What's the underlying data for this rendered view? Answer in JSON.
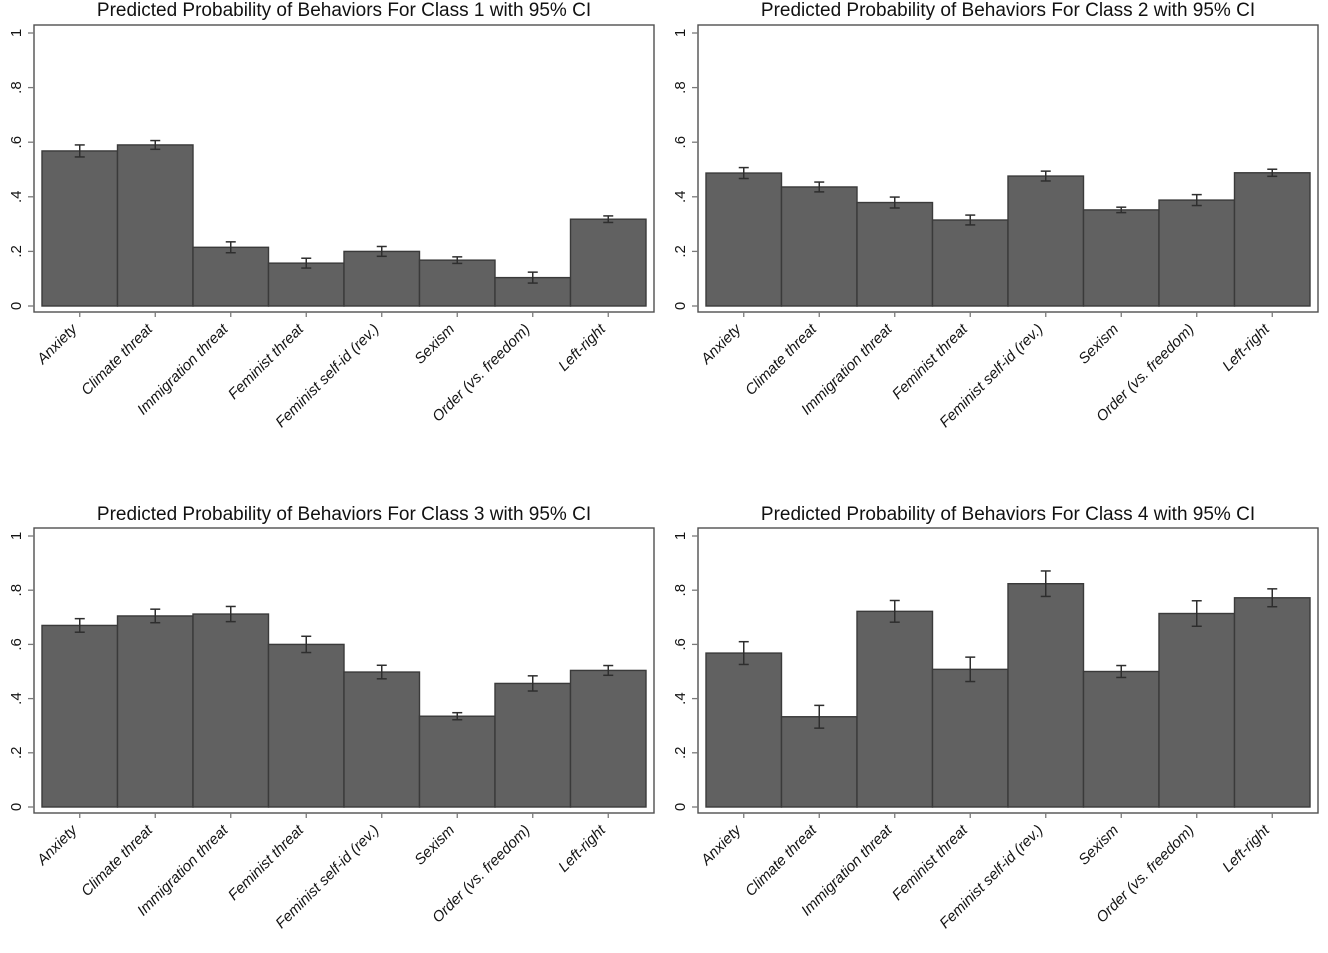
{
  "style": {
    "background": "#ffffff",
    "bar_fill": "#616161",
    "bar_border": "#3a3a3a",
    "axis_color": "#4f4f4f",
    "tick_color": "#7a7a7a",
    "error_color": "#2e2e2e",
    "text_color": "#141414"
  },
  "chart_data": [
    {
      "type": "bar",
      "title": "Predicted Probability of Behaviors For Class 1 with 95% CI",
      "categories": [
        "Anxiety",
        "Climate threat",
        "Immigration threat",
        "Feminist threat",
        "Feminist self-id (rev.)",
        "Sexism",
        "Order (vs. freedom)",
        "Left-right"
      ],
      "values": [
        0.568,
        0.59,
        0.215,
        0.157,
        0.2,
        0.168,
        0.104,
        0.318
      ],
      "ci_halfwidth": [
        0.022,
        0.016,
        0.02,
        0.018,
        0.018,
        0.012,
        0.02,
        0.012
      ],
      "xlabel": "",
      "ylabel": "",
      "ylim": [
        0,
        1
      ],
      "y_ticks": [
        "0",
        ".2",
        ".4",
        ".6",
        ".8",
        "1"
      ],
      "grid": false,
      "legend": false,
      "error_bars": "95% CI"
    },
    {
      "type": "bar",
      "title": "Predicted Probability of Behaviors For Class 2 with 95% CI",
      "categories": [
        "Anxiety",
        "Climate threat",
        "Immigration threat",
        "Feminist threat",
        "Feminist self-id (rev.)",
        "Sexism",
        "Order (vs. freedom)",
        "Left-right"
      ],
      "values": [
        0.487,
        0.436,
        0.379,
        0.315,
        0.476,
        0.352,
        0.388,
        0.488
      ],
      "ci_halfwidth": [
        0.02,
        0.018,
        0.02,
        0.018,
        0.018,
        0.01,
        0.02,
        0.013
      ],
      "xlabel": "",
      "ylabel": "",
      "ylim": [
        0,
        1
      ],
      "y_ticks": [
        "0",
        ".2",
        ".4",
        ".6",
        ".8",
        "1"
      ],
      "grid": false,
      "legend": false,
      "error_bars": "95% CI"
    },
    {
      "type": "bar",
      "title": "Predicted Probability of Behaviors For Class 3 with 95% CI",
      "categories": [
        "Anxiety",
        "Climate threat",
        "Immigration threat",
        "Feminist threat",
        "Feminist self-id (rev.)",
        "Sexism",
        "Order (vs. freedom)",
        "Left-right"
      ],
      "values": [
        0.67,
        0.705,
        0.712,
        0.6,
        0.498,
        0.335,
        0.456,
        0.504
      ],
      "ci_halfwidth": [
        0.025,
        0.025,
        0.028,
        0.03,
        0.025,
        0.013,
        0.028,
        0.018
      ],
      "xlabel": "",
      "ylabel": "",
      "ylim": [
        0,
        1
      ],
      "y_ticks": [
        "0",
        ".2",
        ".4",
        ".6",
        ".8",
        "1"
      ],
      "grid": false,
      "legend": false,
      "error_bars": "95% CI"
    },
    {
      "type": "bar",
      "title": "Predicted Probability of Behaviors For Class 4 with 95% CI",
      "categories": [
        "Anxiety",
        "Climate threat",
        "Immigration threat",
        "Feminist threat",
        "Feminist self-id (rev.)",
        "Sexism",
        "Order (vs. freedom)",
        "Left-right"
      ],
      "values": [
        0.568,
        0.333,
        0.722,
        0.508,
        0.824,
        0.5,
        0.714,
        0.772
      ],
      "ci_halfwidth": [
        0.042,
        0.042,
        0.04,
        0.045,
        0.047,
        0.022,
        0.047,
        0.033
      ],
      "xlabel": "",
      "ylabel": "",
      "ylim": [
        0,
        1
      ],
      "y_ticks": [
        "0",
        ".2",
        ".4",
        ".6",
        ".8",
        "1"
      ],
      "grid": false,
      "legend": false,
      "error_bars": "95% CI"
    }
  ]
}
